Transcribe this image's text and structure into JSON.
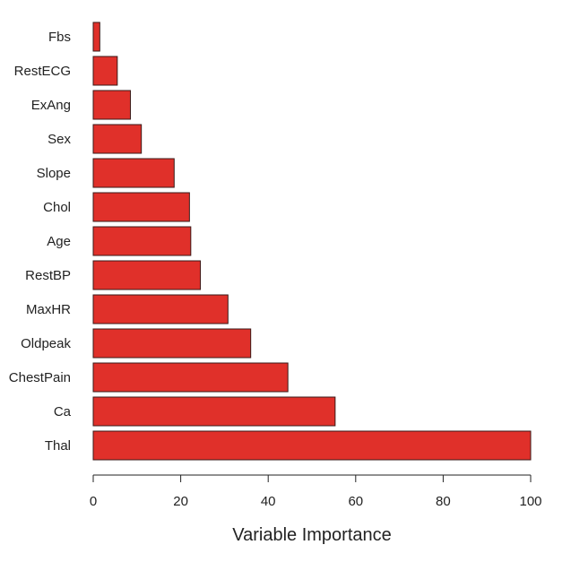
{
  "chart_data": {
    "type": "bar",
    "orientation": "horizontal",
    "title": "",
    "xlabel": "Variable Importance",
    "ylabel": "",
    "categories": [
      "Fbs",
      "RestECG",
      "ExAng",
      "Sex",
      "Slope",
      "Chol",
      "Age",
      "RestBP",
      "MaxHR",
      "Oldpeak",
      "ChestPain",
      "Ca",
      "Thal"
    ],
    "values": [
      1.5,
      5.5,
      8.5,
      11,
      18.5,
      22,
      22.3,
      24.5,
      30.8,
      36,
      44.5,
      55.3,
      100
    ],
    "xlim": [
      0,
      100
    ],
    "xticks": [
      "0",
      "20",
      "40",
      "60",
      "80",
      "100"
    ],
    "xtick_values": [
      0,
      20,
      40,
      60,
      80,
      100
    ],
    "bar_color": "#e0302a",
    "grid": false,
    "legend": "none"
  }
}
